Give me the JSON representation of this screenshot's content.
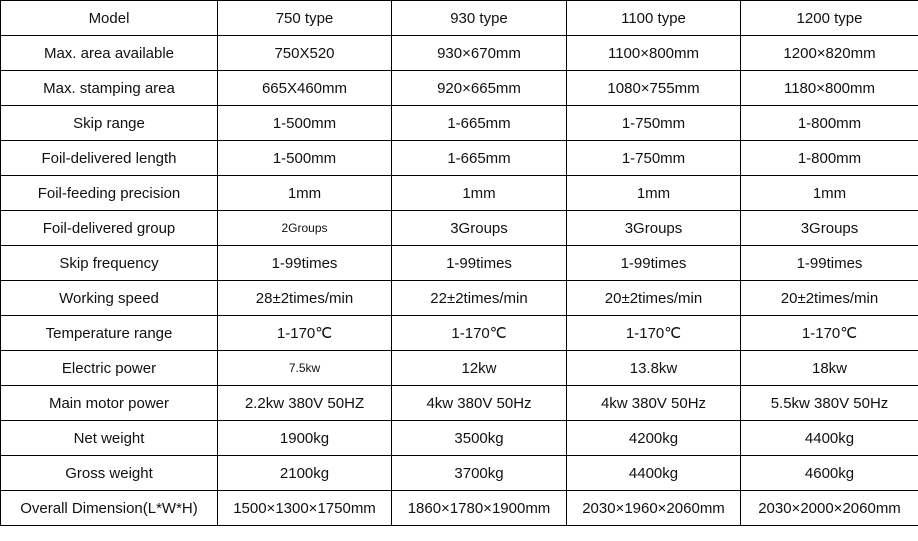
{
  "spec_table": {
    "rows": [
      {
        "label": "Model",
        "values": [
          "750 type",
          "930 type",
          "1100 type",
          "1200 type"
        ]
      },
      {
        "label": "Max. area available",
        "values": [
          "750X520",
          "930×670mm",
          "1100×800mm",
          "1200×820mm"
        ]
      },
      {
        "label": "Max. stamping area",
        "values": [
          "665X460mm",
          "920×665mm",
          "1080×755mm",
          "1180×800mm"
        ]
      },
      {
        "label": "Skip range",
        "values": [
          "1-500mm",
          "1-665mm",
          "1-750mm",
          "1-800mm"
        ]
      },
      {
        "label": "Foil-delivered length",
        "values": [
          "1-500mm",
          "1-665mm",
          "1-750mm",
          "1-800mm"
        ]
      },
      {
        "label": "Foil-feeding precision",
        "values": [
          "1mm",
          "1mm",
          "1mm",
          "1mm"
        ]
      },
      {
        "label": "Foil-delivered group",
        "values": [
          "2Groups",
          "3Groups",
          "3Groups",
          "3Groups"
        ]
      },
      {
        "label": "Skip frequency",
        "values": [
          "1-99times",
          "1-99times",
          "1-99times",
          "1-99times"
        ]
      },
      {
        "label": "Working speed",
        "values": [
          "28±2times/min",
          "22±2times/min",
          "20±2times/min",
          "20±2times/min"
        ]
      },
      {
        "label": "Temperature range",
        "values": [
          "1-170℃",
          "1-170℃",
          "1-170℃",
          "1-170℃"
        ]
      },
      {
        "label": "Electric power",
        "values": [
          "7.5kw",
          "12kw",
          "13.8kw",
          "18kw"
        ]
      },
      {
        "label": "Main motor power",
        "values": [
          "2.2kw  380V 50HZ",
          "4kw 380V 50Hz",
          "4kw 380V 50Hz",
          "5.5kw 380V 50Hz"
        ]
      },
      {
        "label": "Net weight",
        "values": [
          "1900kg",
          "3500kg",
          "4200kg",
          "4400kg"
        ]
      },
      {
        "label": "Gross weight",
        "values": [
          "2100kg",
          "3700kg",
          "4400kg",
          "4600kg"
        ]
      },
      {
        "label": "Overall Dimension(L*W*H)",
        "values": [
          "1500×1300×1750mm",
          "1860×1780×1900mm",
          "2030×1960×2060mm",
          "2030×2000×2060mm"
        ]
      }
    ]
  }
}
